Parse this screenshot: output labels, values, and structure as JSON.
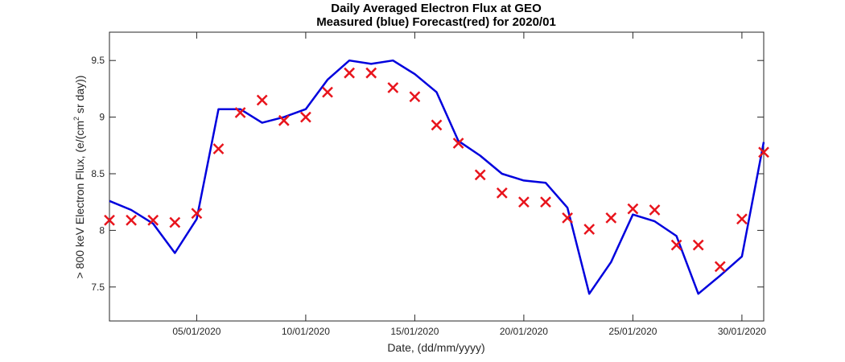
{
  "chart_data": {
    "type": "line",
    "title": "Daily Averaged Electron Flux at GEO",
    "subtitle": "Measured (blue) Forecast(red) for 2020/01",
    "xlabel": "Date, (dd/mm/yyyy)",
    "ylabel_before_sup": "> 800 keV Electron Flux, (e/(cm",
    "ylabel_sup": "2",
    "ylabel_after_sup": " sr day))",
    "xlim": [
      1,
      31
    ],
    "ylim": [
      7.2,
      9.75
    ],
    "x_ticks": [
      5,
      10,
      15,
      20,
      25,
      30
    ],
    "x_tick_labels": [
      "05/01/2020",
      "10/01/2020",
      "15/01/2020",
      "20/01/2020",
      "25/01/2020",
      "30/01/2020"
    ],
    "y_ticks": [
      7.5,
      8,
      8.5,
      9,
      9.5
    ],
    "y_tick_labels": [
      "7.5",
      "8",
      "8.5",
      "9",
      "9.5"
    ],
    "grid": false,
    "series": [
      {
        "marker": "line",
        "color": "#0000dd",
        "x": [
          1,
          2,
          3,
          4,
          5,
          6,
          7,
          8,
          9,
          10,
          11,
          12,
          13,
          14,
          15,
          16,
          17,
          18,
          19,
          20,
          21,
          22,
          23,
          24,
          25,
          26,
          27,
          28,
          29,
          30,
          31
        ],
        "values": [
          8.26,
          8.18,
          8.06,
          7.8,
          8.1,
          9.07,
          9.07,
          8.95,
          9.0,
          9.07,
          9.33,
          9.5,
          9.47,
          9.5,
          9.38,
          9.22,
          8.79,
          8.66,
          8.5,
          8.44,
          8.42,
          8.2,
          7.44,
          7.72,
          8.14,
          8.08,
          7.95,
          7.44,
          7.6,
          7.77,
          8.78
        ]
      },
      {
        "marker": "x",
        "color": "#e8141c",
        "x": [
          1,
          2,
          3,
          4,
          5,
          6,
          7,
          8,
          9,
          10,
          11,
          12,
          13,
          14,
          15,
          16,
          17,
          18,
          19,
          20,
          21,
          22,
          23,
          24,
          25,
          26,
          27,
          28,
          29,
          30,
          31
        ],
        "values": [
          8.09,
          8.09,
          8.09,
          8.07,
          8.15,
          8.72,
          9.04,
          9.15,
          8.97,
          9.0,
          9.22,
          9.39,
          9.39,
          9.26,
          9.18,
          8.93,
          8.77,
          8.49,
          8.33,
          8.25,
          8.25,
          8.11,
          8.01,
          8.11,
          8.19,
          8.18,
          7.87,
          7.87,
          7.68,
          8.1,
          8.69
        ]
      }
    ]
  }
}
